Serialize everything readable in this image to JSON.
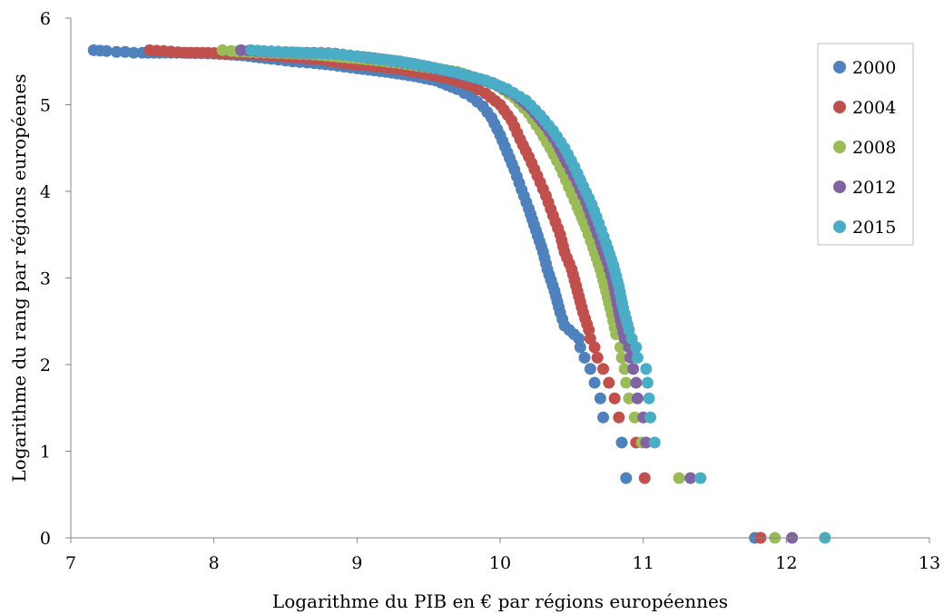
{
  "chart_data": {
    "type": "scatter",
    "title": "",
    "xlabel": "Logarithme du PIB en € par régions européennes",
    "ylabel": "Logarithme du rang par régions européenes",
    "xlim": [
      7,
      13
    ],
    "ylim": [
      0,
      6
    ],
    "xticks": [
      "7",
      "8",
      "9",
      "10",
      "11",
      "12",
      "13"
    ],
    "yticks": [
      "0",
      "1",
      "2",
      "3",
      "4",
      "5",
      "6"
    ],
    "grid": false,
    "legend_position": "top-right",
    "series": [
      {
        "name": "2000",
        "color": "#4F81BD",
        "points": [
          [
            7.16,
            5.63
          ],
          [
            7.25,
            5.62
          ],
          [
            7.32,
            5.61
          ],
          [
            7.38,
            5.61
          ],
          [
            7.44,
            5.6
          ],
          [
            7.5,
            5.6
          ],
          [
            7.78,
            5.6
          ],
          [
            8.0,
            5.59
          ],
          [
            8.2,
            5.57
          ],
          [
            8.4,
            5.53
          ],
          [
            8.55,
            5.5
          ],
          [
            8.7,
            5.48
          ],
          [
            8.82,
            5.46
          ],
          [
            9.0,
            5.42
          ],
          [
            9.2,
            5.38
          ],
          [
            9.4,
            5.33
          ],
          [
            9.55,
            5.28
          ],
          [
            9.7,
            5.18
          ],
          [
            9.8,
            5.09
          ],
          [
            9.88,
            4.98
          ],
          [
            9.94,
            4.85
          ],
          [
            10.0,
            4.65
          ],
          [
            10.05,
            4.45
          ],
          [
            10.1,
            4.25
          ],
          [
            10.15,
            4.02
          ],
          [
            10.2,
            3.8
          ],
          [
            10.25,
            3.55
          ],
          [
            10.3,
            3.3
          ],
          [
            10.33,
            3.1
          ],
          [
            10.38,
            2.85
          ],
          [
            10.42,
            2.6
          ],
          [
            10.45,
            2.45
          ],
          [
            10.55,
            2.3
          ],
          [
            10.56,
            2.2
          ],
          [
            10.59,
            2.08
          ],
          [
            10.63,
            1.95
          ],
          [
            10.66,
            1.79
          ],
          [
            10.7,
            1.61
          ],
          [
            10.72,
            1.39
          ],
          [
            10.85,
            1.1
          ],
          [
            10.88,
            0.69
          ],
          [
            11.78,
            0.0
          ]
        ]
      },
      {
        "name": "2004",
        "color": "#C0504D",
        "points": [
          [
            7.55,
            5.63
          ],
          [
            7.65,
            5.62
          ],
          [
            7.8,
            5.6
          ],
          [
            7.88,
            5.6
          ],
          [
            7.96,
            5.6
          ],
          [
            8.3,
            5.58
          ],
          [
            8.45,
            5.56
          ],
          [
            8.6,
            5.54
          ],
          [
            8.75,
            5.52
          ],
          [
            8.9,
            5.48
          ],
          [
            9.1,
            5.45
          ],
          [
            9.3,
            5.41
          ],
          [
            9.5,
            5.35
          ],
          [
            9.65,
            5.3
          ],
          [
            9.8,
            5.22
          ],
          [
            9.9,
            5.13
          ],
          [
            10.0,
            5.0
          ],
          [
            10.08,
            4.82
          ],
          [
            10.14,
            4.6
          ],
          [
            10.2,
            4.4
          ],
          [
            10.26,
            4.18
          ],
          [
            10.32,
            3.95
          ],
          [
            10.37,
            3.72
          ],
          [
            10.42,
            3.5
          ],
          [
            10.45,
            3.3
          ],
          [
            10.5,
            3.1
          ],
          [
            10.54,
            2.85
          ],
          [
            10.58,
            2.6
          ],
          [
            10.62,
            2.4
          ],
          [
            10.63,
            2.3
          ],
          [
            10.66,
            2.2
          ],
          [
            10.68,
            2.08
          ],
          [
            10.72,
            1.95
          ],
          [
            10.76,
            1.79
          ],
          [
            10.8,
            1.61
          ],
          [
            10.83,
            1.39
          ],
          [
            10.95,
            1.1
          ],
          [
            11.01,
            0.69
          ],
          [
            11.82,
            0.0
          ]
        ]
      },
      {
        "name": "2008",
        "color": "#9BBB59",
        "points": [
          [
            8.06,
            5.63
          ],
          [
            8.12,
            5.62
          ],
          [
            8.25,
            5.61
          ],
          [
            8.4,
            5.6
          ],
          [
            8.55,
            5.59
          ],
          [
            8.7,
            5.58
          ],
          [
            8.9,
            5.55
          ],
          [
            9.1,
            5.52
          ],
          [
            9.3,
            5.48
          ],
          [
            9.5,
            5.43
          ],
          [
            9.7,
            5.38
          ],
          [
            9.85,
            5.3
          ],
          [
            9.98,
            5.22
          ],
          [
            10.1,
            5.08
          ],
          [
            10.2,
            4.9
          ],
          [
            10.28,
            4.7
          ],
          [
            10.35,
            4.5
          ],
          [
            10.42,
            4.28
          ],
          [
            10.48,
            4.05
          ],
          [
            10.54,
            3.82
          ],
          [
            10.6,
            3.58
          ],
          [
            10.65,
            3.35
          ],
          [
            10.7,
            3.1
          ],
          [
            10.74,
            2.85
          ],
          [
            10.78,
            2.58
          ],
          [
            10.81,
            2.35
          ],
          [
            10.84,
            2.2
          ],
          [
            10.85,
            2.08
          ],
          [
            10.87,
            1.95
          ],
          [
            10.88,
            1.79
          ],
          [
            10.9,
            1.61
          ],
          [
            10.94,
            1.39
          ],
          [
            10.99,
            1.1
          ],
          [
            11.25,
            0.69
          ],
          [
            11.92,
            0.0
          ]
        ]
      },
      {
        "name": "2012",
        "color": "#8064A2",
        "points": [
          [
            8.19,
            5.63
          ],
          [
            8.3,
            5.62
          ],
          [
            8.45,
            5.61
          ],
          [
            8.6,
            5.6
          ],
          [
            8.75,
            5.6
          ],
          [
            8.85,
            5.59
          ],
          [
            9.0,
            5.56
          ],
          [
            9.2,
            5.52
          ],
          [
            9.4,
            5.47
          ],
          [
            9.6,
            5.4
          ],
          [
            9.8,
            5.32
          ],
          [
            9.95,
            5.25
          ],
          [
            10.1,
            5.12
          ],
          [
            10.22,
            4.95
          ],
          [
            10.32,
            4.75
          ],
          [
            10.4,
            4.55
          ],
          [
            10.47,
            4.32
          ],
          [
            10.54,
            4.1
          ],
          [
            10.6,
            3.88
          ],
          [
            10.65,
            3.65
          ],
          [
            10.7,
            3.42
          ],
          [
            10.75,
            3.18
          ],
          [
            10.79,
            2.95
          ],
          [
            10.82,
            2.7
          ],
          [
            10.85,
            2.45
          ],
          [
            10.87,
            2.3
          ],
          [
            10.9,
            2.2
          ],
          [
            10.91,
            2.08
          ],
          [
            10.93,
            1.95
          ],
          [
            10.95,
            1.79
          ],
          [
            10.96,
            1.61
          ],
          [
            11.0,
            1.39
          ],
          [
            11.02,
            1.1
          ],
          [
            11.33,
            0.69
          ],
          [
            12.04,
            0.0
          ]
        ]
      },
      {
        "name": "2015",
        "color": "#4BACC6",
        "points": [
          [
            8.26,
            5.63
          ],
          [
            8.35,
            5.62
          ],
          [
            8.5,
            5.61
          ],
          [
            8.62,
            5.6
          ],
          [
            8.8,
            5.59
          ],
          [
            8.95,
            5.57
          ],
          [
            9.1,
            5.54
          ],
          [
            9.3,
            5.5
          ],
          [
            9.5,
            5.44
          ],
          [
            9.7,
            5.37
          ],
          [
            9.9,
            5.28
          ],
          [
            10.05,
            5.18
          ],
          [
            10.18,
            5.05
          ],
          [
            10.28,
            4.88
          ],
          [
            10.37,
            4.7
          ],
          [
            10.45,
            4.5
          ],
          [
            10.52,
            4.28
          ],
          [
            10.58,
            4.06
          ],
          [
            10.64,
            3.85
          ],
          [
            10.69,
            3.63
          ],
          [
            10.74,
            3.4
          ],
          [
            10.79,
            3.15
          ],
          [
            10.83,
            2.9
          ],
          [
            10.86,
            2.65
          ],
          [
            10.9,
            2.4
          ],
          [
            10.92,
            2.3
          ],
          [
            10.95,
            2.2
          ],
          [
            10.96,
            2.08
          ],
          [
            11.02,
            1.95
          ],
          [
            11.03,
            1.79
          ],
          [
            11.04,
            1.61
          ],
          [
            11.05,
            1.39
          ],
          [
            11.08,
            1.1
          ],
          [
            11.4,
            0.69
          ],
          [
            12.27,
            0.0
          ]
        ]
      }
    ]
  }
}
